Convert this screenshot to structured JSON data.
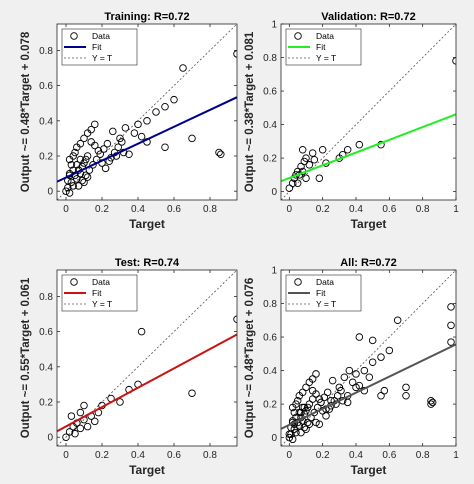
{
  "window": {
    "background": "#f0f0f0"
  },
  "chart_data": [
    {
      "type": "scatter",
      "key": "training",
      "title": "Training: R=0.72",
      "xlabel": "Target",
      "ylabel": "Output ~= 0.48*Target + 0.078",
      "xlim": [
        -0.05,
        0.95
      ],
      "ylim": [
        -0.05,
        0.95
      ],
      "xticks": [
        0,
        0.2,
        0.4,
        0.6,
        0.8
      ],
      "yticks": [
        0,
        0.2,
        0.4,
        0.6,
        0.8
      ],
      "fit_color": "#00008b",
      "fit": {
        "slope": 0.48,
        "intercept": 0.078
      },
      "grid": false,
      "legend": {
        "placement": "top-left",
        "entries": [
          "Data",
          "Fit",
          "Y = T"
        ]
      },
      "points": [
        [
          0.0,
          0.0
        ],
        [
          0.01,
          0.02
        ],
        [
          0.02,
          -0.01
        ],
        [
          0.03,
          0.05
        ],
        [
          0.04,
          0.03
        ],
        [
          0.05,
          0.09
        ],
        [
          0.06,
          0.07
        ],
        [
          0.07,
          0.12
        ],
        [
          0.08,
          0.1
        ],
        [
          0.09,
          0.14
        ],
        [
          0.1,
          0.16
        ],
        [
          0.11,
          0.18
        ],
        [
          0.12,
          0.2
        ],
        [
          0.05,
          0.22
        ],
        [
          0.06,
          0.25
        ],
        [
          0.08,
          0.27
        ],
        [
          0.03,
          0.15
        ],
        [
          0.02,
          0.18
        ],
        [
          0.04,
          0.2
        ],
        [
          0.1,
          0.3
        ],
        [
          0.12,
          0.33
        ],
        [
          0.14,
          0.35
        ],
        [
          0.16,
          0.38
        ],
        [
          0.02,
          0.1
        ],
        [
          0.01,
          0.06
        ],
        [
          0.07,
          0.03
        ],
        [
          0.09,
          0.06
        ],
        [
          0.11,
          0.09
        ],
        [
          0.13,
          0.12
        ],
        [
          0.15,
          0.15
        ],
        [
          0.17,
          0.18
        ],
        [
          0.19,
          0.21
        ],
        [
          0.21,
          0.24
        ],
        [
          0.23,
          0.27
        ],
        [
          0.25,
          0.19
        ],
        [
          0.27,
          0.22
        ],
        [
          0.29,
          0.25
        ],
        [
          0.31,
          0.28
        ],
        [
          0.2,
          0.16
        ],
        [
          0.22,
          0.13
        ],
        [
          0.24,
          0.17
        ],
        [
          0.18,
          0.23
        ],
        [
          0.16,
          0.26
        ],
        [
          0.14,
          0.28
        ],
        [
          0.12,
          0.08
        ],
        [
          0.1,
          0.05
        ],
        [
          0.08,
          0.18
        ],
        [
          0.06,
          0.15
        ],
        [
          0.04,
          0.12
        ],
        [
          0.02,
          0.09
        ],
        [
          0.26,
          0.34
        ],
        [
          0.3,
          0.3
        ],
        [
          0.33,
          0.36
        ],
        [
          0.35,
          0.21
        ],
        [
          0.38,
          0.33
        ],
        [
          0.4,
          0.38
        ],
        [
          0.42,
          0.31
        ],
        [
          0.45,
          0.4
        ],
        [
          0.5,
          0.45
        ],
        [
          0.55,
          0.48
        ],
        [
          0.6,
          0.52
        ],
        [
          0.65,
          0.7
        ],
        [
          0.7,
          0.3
        ],
        [
          0.85,
          0.22
        ],
        [
          0.86,
          0.21
        ],
        [
          0.95,
          0.78
        ],
        [
          0.55,
          0.25
        ],
        [
          0.45,
          0.28
        ],
        [
          0.32,
          0.22
        ],
        [
          0.28,
          0.2
        ]
      ]
    },
    {
      "type": "scatter",
      "key": "validation",
      "title": "Validation: R=0.72",
      "xlabel": "Target",
      "ylabel": "Output ~= 0.38*Target + 0.081",
      "xlim": [
        -0.05,
        1.0
      ],
      "ylim": [
        -0.05,
        1.0
      ],
      "xticks": [
        0,
        0.2,
        0.4,
        0.6,
        0.8,
        1
      ],
      "yticks": [
        0,
        0.2,
        0.4,
        0.6,
        0.8,
        1
      ],
      "fit_color": "#22ee22",
      "fit": {
        "slope": 0.38,
        "intercept": 0.081
      },
      "grid": false,
      "legend": {
        "placement": "top-left",
        "entries": [
          "Data",
          "Fit",
          "Y = T"
        ]
      },
      "points": [
        [
          0.0,
          0.02
        ],
        [
          0.02,
          0.05
        ],
        [
          0.03,
          0.08
        ],
        [
          0.04,
          0.1
        ],
        [
          0.05,
          0.12
        ],
        [
          0.06,
          0.1
        ],
        [
          0.07,
          0.15
        ],
        [
          0.08,
          0.12
        ],
        [
          0.09,
          0.18
        ],
        [
          0.1,
          0.2
        ],
        [
          0.12,
          0.16
        ],
        [
          0.14,
          0.23
        ],
        [
          0.15,
          0.19
        ],
        [
          0.18,
          0.08
        ],
        [
          0.2,
          0.25
        ],
        [
          0.22,
          0.17
        ],
        [
          0.3,
          0.2
        ],
        [
          0.32,
          0.22
        ],
        [
          0.35,
          0.25
        ],
        [
          0.42,
          0.28
        ],
        [
          0.55,
          0.28
        ],
        [
          1.0,
          0.78
        ],
        [
          0.05,
          0.05
        ],
        [
          0.1,
          0.08
        ],
        [
          0.08,
          0.25
        ]
      ]
    },
    {
      "type": "scatter",
      "key": "test",
      "title": "Test: R=0.74",
      "xlabel": "Target",
      "ylabel": "Output ~= 0.55*Target + 0.061",
      "xlim": [
        -0.05,
        0.95
      ],
      "ylim": [
        -0.05,
        0.95
      ],
      "xticks": [
        0,
        0.2,
        0.4,
        0.6,
        0.8
      ],
      "yticks": [
        0,
        0.2,
        0.4,
        0.6,
        0.8
      ],
      "fit_color": "#cc1111",
      "fit": {
        "slope": 0.55,
        "intercept": 0.061
      },
      "grid": false,
      "legend": {
        "placement": "top-left",
        "entries": [
          "Data",
          "Fit",
          "Y = T"
        ]
      },
      "points": [
        [
          0.0,
          0.0
        ],
        [
          0.02,
          0.03
        ],
        [
          0.04,
          0.06
        ],
        [
          0.05,
          0.02
        ],
        [
          0.06,
          0.08
        ],
        [
          0.08,
          0.05
        ],
        [
          0.1,
          0.1
        ],
        [
          0.12,
          0.06
        ],
        [
          0.14,
          0.12
        ],
        [
          0.16,
          0.09
        ],
        [
          0.18,
          0.14
        ],
        [
          0.2,
          0.18
        ],
        [
          0.1,
          0.18
        ],
        [
          0.25,
          0.22
        ],
        [
          0.3,
          0.2
        ],
        [
          0.35,
          0.27
        ],
        [
          0.4,
          0.3
        ],
        [
          0.42,
          0.6
        ],
        [
          0.7,
          0.25
        ],
        [
          0.95,
          0.67
        ],
        [
          0.03,
          0.12
        ],
        [
          0.08,
          0.14
        ]
      ]
    },
    {
      "type": "scatter",
      "key": "all",
      "title": "All: R=0.72",
      "xlabel": "Target",
      "ylabel": "Output ~= 0.48*Target + 0.076",
      "xlim": [
        -0.05,
        1.0
      ],
      "ylim": [
        -0.05,
        1.0
      ],
      "xticks": [
        0,
        0.2,
        0.4,
        0.6,
        0.8,
        1
      ],
      "yticks": [
        0,
        0.2,
        0.4,
        0.6,
        0.8,
        1
      ],
      "fit_color": "#555555",
      "fit": {
        "slope": 0.48,
        "intercept": 0.076
      },
      "grid": false,
      "legend": {
        "placement": "top-left",
        "entries": [
          "Data",
          "Fit",
          "Y = T"
        ]
      },
      "points": [
        [
          0.0,
          0.0
        ],
        [
          0.01,
          0.02
        ],
        [
          0.02,
          -0.01
        ],
        [
          0.03,
          0.05
        ],
        [
          0.04,
          0.03
        ],
        [
          0.05,
          0.09
        ],
        [
          0.06,
          0.07
        ],
        [
          0.07,
          0.12
        ],
        [
          0.08,
          0.1
        ],
        [
          0.09,
          0.14
        ],
        [
          0.1,
          0.16
        ],
        [
          0.11,
          0.18
        ],
        [
          0.12,
          0.2
        ],
        [
          0.05,
          0.22
        ],
        [
          0.06,
          0.25
        ],
        [
          0.08,
          0.27
        ],
        [
          0.03,
          0.15
        ],
        [
          0.02,
          0.18
        ],
        [
          0.04,
          0.2
        ],
        [
          0.1,
          0.3
        ],
        [
          0.12,
          0.33
        ],
        [
          0.14,
          0.35
        ],
        [
          0.16,
          0.38
        ],
        [
          0.02,
          0.1
        ],
        [
          0.01,
          0.06
        ],
        [
          0.07,
          0.03
        ],
        [
          0.09,
          0.06
        ],
        [
          0.11,
          0.09
        ],
        [
          0.13,
          0.12
        ],
        [
          0.15,
          0.15
        ],
        [
          0.17,
          0.18
        ],
        [
          0.19,
          0.21
        ],
        [
          0.21,
          0.24
        ],
        [
          0.23,
          0.27
        ],
        [
          0.25,
          0.19
        ],
        [
          0.27,
          0.22
        ],
        [
          0.29,
          0.25
        ],
        [
          0.31,
          0.28
        ],
        [
          0.2,
          0.16
        ],
        [
          0.22,
          0.13
        ],
        [
          0.24,
          0.17
        ],
        [
          0.18,
          0.23
        ],
        [
          0.16,
          0.26
        ],
        [
          0.14,
          0.28
        ],
        [
          0.12,
          0.08
        ],
        [
          0.1,
          0.05
        ],
        [
          0.08,
          0.18
        ],
        [
          0.06,
          0.15
        ],
        [
          0.04,
          0.12
        ],
        [
          0.02,
          0.09
        ],
        [
          0.26,
          0.34
        ],
        [
          0.3,
          0.3
        ],
        [
          0.33,
          0.36
        ],
        [
          0.35,
          0.21
        ],
        [
          0.38,
          0.33
        ],
        [
          0.4,
          0.38
        ],
        [
          0.42,
          0.31
        ],
        [
          0.45,
          0.4
        ],
        [
          0.5,
          0.45
        ],
        [
          0.55,
          0.48
        ],
        [
          0.6,
          0.52
        ],
        [
          0.65,
          0.7
        ],
        [
          0.7,
          0.3
        ],
        [
          0.85,
          0.22
        ],
        [
          0.86,
          0.21
        ],
        [
          0.97,
          0.78
        ],
        [
          0.55,
          0.25
        ],
        [
          0.45,
          0.28
        ],
        [
          0.32,
          0.22
        ],
        [
          0.28,
          0.2
        ],
        [
          0.0,
          0.02
        ],
        [
          0.03,
          0.08
        ],
        [
          0.07,
          0.15
        ],
        [
          0.09,
          0.18
        ],
        [
          0.14,
          0.23
        ],
        [
          0.18,
          0.08
        ],
        [
          0.22,
          0.17
        ],
        [
          0.35,
          0.25
        ],
        [
          0.57,
          0.28
        ],
        [
          0.97,
          0.67
        ],
        [
          0.42,
          0.6
        ],
        [
          0.7,
          0.25
        ],
        [
          0.4,
          0.3
        ],
        [
          0.25,
          0.22
        ],
        [
          0.16,
          0.09
        ],
        [
          0.97,
          0.57
        ],
        [
          0.85,
          0.2
        ],
        [
          0.5,
          0.58
        ],
        [
          0.48,
          0.36
        ],
        [
          0.36,
          0.4
        ]
      ]
    }
  ]
}
